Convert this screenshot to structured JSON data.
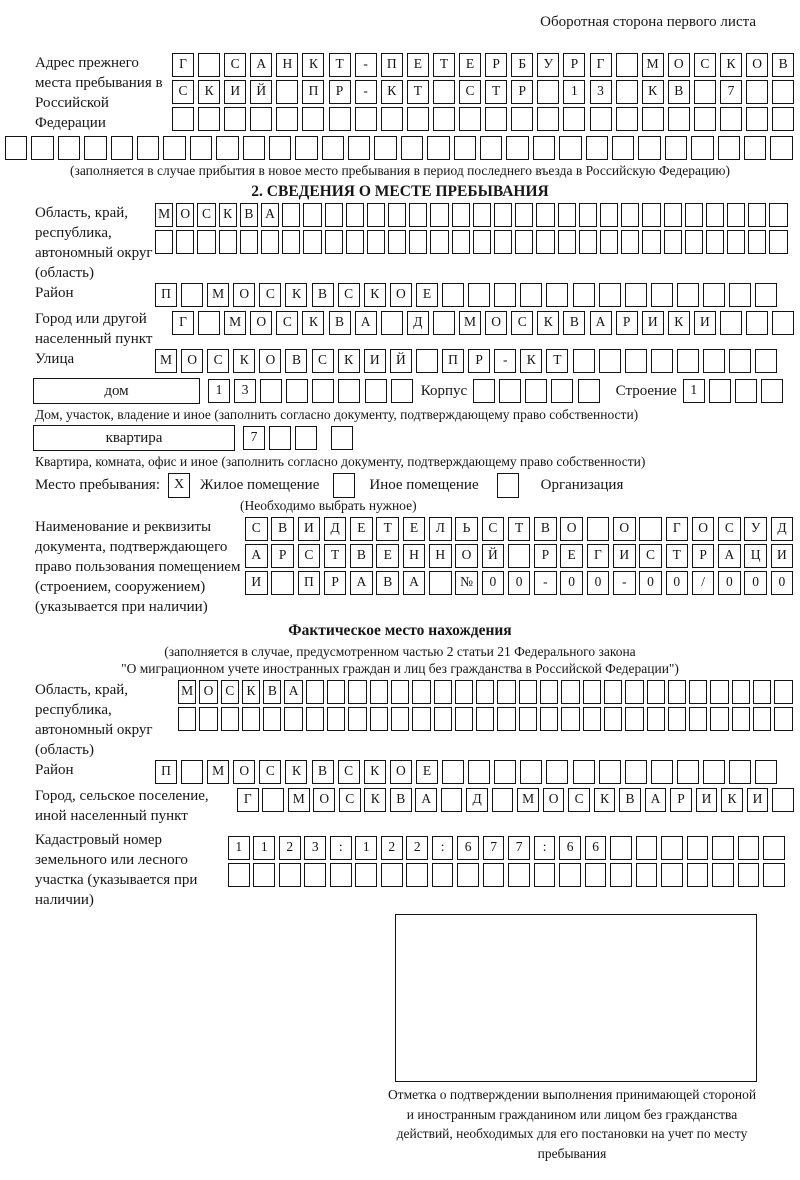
{
  "page": {
    "side_note": "Оборотная сторона первого листа"
  },
  "prev_address": {
    "label": "Адрес прежнего места пребывания в Российской Федерации",
    "row1": [
      "Г",
      "",
      "С",
      "А",
      "Н",
      "К",
      "Т",
      "-",
      "П",
      "Е",
      "Т",
      "Е",
      "Р",
      "Б",
      "У",
      "Р",
      "Г",
      "",
      "М",
      "О",
      "С",
      "К",
      "О",
      "В"
    ],
    "row2": [
      "С",
      "К",
      "И",
      "Й",
      "",
      "П",
      "Р",
      "-",
      "К",
      "Т",
      "",
      "С",
      "Т",
      "Р",
      "",
      "1",
      "3",
      "",
      "К",
      "В",
      "",
      "7",
      "",
      ""
    ],
    "row3": 24,
    "row4": 30,
    "caption": "(заполняется в случае прибытия в новое место пребывания в период последнего въезда в Российскую Федерацию)"
  },
  "section2": {
    "title": "2. СВЕДЕНИЯ О МЕСТЕ ПРЕБЫВАНИЯ",
    "region": {
      "label": "Область, край, республика, автономный округ (область)",
      "row1": [
        "М",
        "О",
        "С",
        "К",
        "В",
        "А",
        "",
        "",
        "",
        "",
        "",
        "",
        "",
        "",
        "",
        "",
        "",
        "",
        "",
        "",
        "",
        "",
        "",
        "",
        "",
        "",
        "",
        "",
        "",
        ""
      ],
      "row2": 30
    },
    "district": {
      "label": "Район",
      "cells": [
        "П",
        "",
        "М",
        "О",
        "С",
        "К",
        "В",
        "С",
        "К",
        "О",
        "Е",
        "",
        "",
        "",
        "",
        "",
        "",
        "",
        "",
        "",
        "",
        "",
        "",
        ""
      ]
    },
    "city": {
      "label": "Город или другой населенный пункт",
      "cells": [
        "Г",
        "",
        "М",
        "О",
        "С",
        "К",
        "В",
        "А",
        "",
        "Д",
        "",
        "М",
        "О",
        "С",
        "К",
        "В",
        "А",
        "Р",
        "И",
        "К",
        "И",
        "",
        "",
        ""
      ]
    },
    "street": {
      "label": "Улица",
      "cells": [
        "М",
        "О",
        "С",
        "К",
        "О",
        "В",
        "С",
        "К",
        "И",
        "Й",
        "",
        "П",
        "Р",
        "-",
        "К",
        "Т",
        "",
        "",
        "",
        "",
        "",
        "",
        "",
        ""
      ]
    },
    "house": {
      "label": "дом",
      "cells": [
        "1",
        "3",
        "",
        "",
        "",
        "",
        "",
        ""
      ],
      "korpus_label": "Корпус",
      "korpus_cells": 5,
      "stroenie_label": "Строение",
      "stroenie_cells": [
        "1",
        "",
        "",
        ""
      ]
    },
    "house_caption": "Дом, участок, владение и иное (заполнить согласно документу, подтверждающему право собственности)",
    "apartment": {
      "label": "квартира",
      "cells": [
        "7",
        "",
        ""
      ],
      "extra_cells": 1
    },
    "apartment_caption": "Квартира, комната, офис и иное (заполнить согласно документу, подтверждающему право собственности)",
    "stay_type": {
      "label": "Место пребывания:",
      "options": [
        {
          "label": "Жилое помещение",
          "checked": "X"
        },
        {
          "label": "Иное помещение",
          "checked": ""
        },
        {
          "label": "Организация",
          "checked": ""
        }
      ],
      "hint": "(Необходимо выбрать нужное)"
    },
    "document": {
      "label": "Наименование и реквизиты документа, подтверждающего право пользования помещением (строением, сооружением) (указывается при наличии)",
      "row1": [
        "С",
        "В",
        "И",
        "Д",
        "Е",
        "Т",
        "Е",
        "Л",
        "Ь",
        "С",
        "Т",
        "В",
        "О",
        "",
        "О",
        "",
        "Г",
        "О",
        "С",
        "У",
        "Д"
      ],
      "row2": [
        "А",
        "Р",
        "С",
        "Т",
        "В",
        "Е",
        "Н",
        "Н",
        "О",
        "Й",
        "",
        "Р",
        "Е",
        "Г",
        "И",
        "С",
        "Т",
        "Р",
        "А",
        "Ц",
        "И"
      ],
      "row3": [
        "И",
        "",
        "П",
        "Р",
        "А",
        "В",
        "А",
        "",
        "№",
        "0",
        "0",
        "-",
        "0",
        "0",
        "-",
        "0",
        "0",
        "/",
        "0",
        "0",
        "0"
      ]
    }
  },
  "actual_location": {
    "title": "Фактическое место нахождения",
    "caption1": "(заполняется в случае, предусмотренном частью 2 статьи 21 Федерального закона",
    "caption2": "\"О миграционном учете иностранных граждан и лиц без гражданства в Российской Федерации\")",
    "region": {
      "label": "Область, край, республика, автономный округ (область)",
      "row1": [
        "М",
        "О",
        "С",
        "К",
        "В",
        "А",
        "",
        "",
        "",
        "",
        "",
        "",
        "",
        "",
        "",
        "",
        "",
        "",
        "",
        "",
        "",
        "",
        "",
        "",
        "",
        "",
        "",
        "",
        ""
      ],
      "row2": 29
    },
    "district": {
      "label": "Район",
      "cells": [
        "П",
        "",
        "М",
        "О",
        "С",
        "К",
        "В",
        "С",
        "К",
        "О",
        "Е",
        "",
        "",
        "",
        "",
        "",
        "",
        "",
        "",
        "",
        "",
        "",
        "",
        ""
      ]
    },
    "city": {
      "label": "Город, сельское поселение, иной населенный пункт",
      "cells": [
        "Г",
        "",
        "М",
        "О",
        "С",
        "К",
        "В",
        "А",
        "",
        "Д",
        "",
        "М",
        "О",
        "С",
        "К",
        "В",
        "А",
        "Р",
        "И",
        "К",
        "И",
        ""
      ]
    },
    "cadastre": {
      "label": "Кадастровый номер земельного или лесного участка (указывается при наличии)",
      "row1": [
        "1",
        "1",
        "2",
        "3",
        ":",
        "1",
        "2",
        "2",
        ":",
        "6",
        "7",
        "7",
        ":",
        "6",
        "6",
        "",
        "",
        "",
        "",
        "",
        "",
        ""
      ],
      "row2": 22
    },
    "stamp_caption": "Отметка о подтверждении выполнения принимающей стороной и иностранным гражданином или лицом без гражданства действий, необходимых для его постановки на учет по месту пребывания"
  }
}
